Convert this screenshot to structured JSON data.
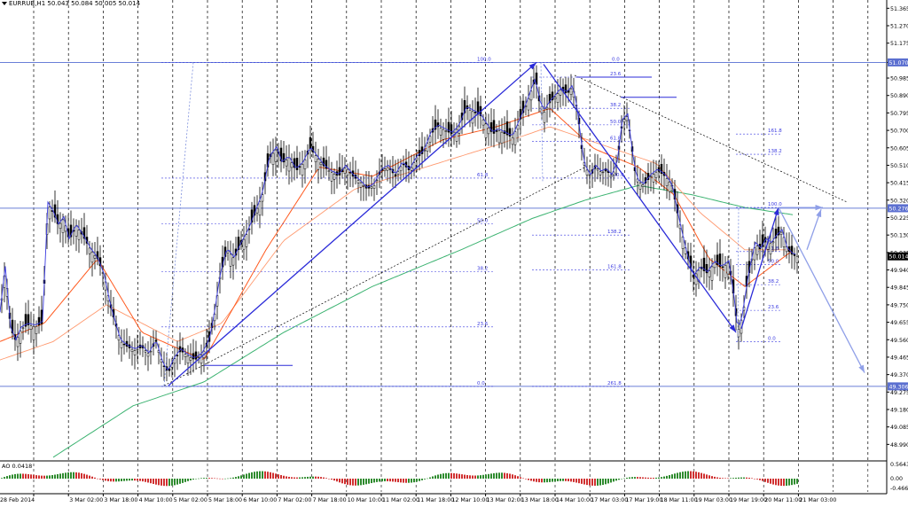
{
  "header": {
    "symbol": "EURRUB,H1",
    "quote": "50.043 50.084 50.005 50.014"
  },
  "colors": {
    "background": "#ffffff",
    "grid": "#000000",
    "candles": "#000000",
    "ma_fast": "#3a3ae0",
    "ma_mid": "#ff5a1f",
    "ma_slow": "#ff9a70",
    "ma_long": "#3cb371",
    "level_line": "#6a7fd8",
    "fib": "#3a3ae0",
    "arrow": "#2b2bd8",
    "arrow_future": "#8f9fe8",
    "ao_up": "#2e8b2e",
    "ao_down": "#d03030",
    "price_box": "#000000",
    "level_box": "#5b6fd0"
  },
  "ao": {
    "label": "AO 0.0418",
    "axis_ticks": [
      "0.5643",
      "0.00",
      "-0.4668"
    ]
  },
  "chart_data": {
    "type": "candlestick",
    "title": "",
    "ylim": [
      48.9,
      51.41
    ],
    "y_ticks": [
      "51.365",
      "51.270",
      "51.175",
      "51.070",
      "50.985",
      "50.890",
      "50.795",
      "50.700",
      "50.605",
      "50.510",
      "50.415",
      "50.320",
      "50.225",
      "50.130",
      "50.035",
      "49.940",
      "49.845",
      "49.750",
      "49.655",
      "49.560",
      "49.465",
      "49.370",
      "49.275",
      "49.180",
      "49.085",
      "48.990"
    ],
    "x_ticks": [
      "28 Feb 2014",
      "3 Mar 02:00",
      "3 Mar 18:00",
      "4 Mar 10:00",
      "5 Mar 02:00",
      "5 Mar 18:00",
      "6 Mar 10:00",
      "7 Mar 02:00",
      "7 Mar 18:00",
      "10 Mar 10:00",
      "11 Mar 02:00",
      "11 Mar 18:00",
      "12 Mar 10:00",
      "13 Mar 02:00",
      "13 Mar 18:00",
      "14 Mar 10:00",
      "17 Mar 03:00",
      "17 Mar 19:00",
      "18 Mar 11:00",
      "19 Mar 03:00",
      "19 Mar 19:00",
      "20 Mar 11:00",
      "21 Mar 03:00"
    ],
    "current_price": "50.014",
    "horizontal_levels": [
      {
        "label": "51.070",
        "value": 51.07
      },
      {
        "label": "50.276",
        "value": 50.276
      },
      {
        "label": "49.306",
        "value": 49.306
      }
    ],
    "fib_labels_left": [
      "100.0",
      "61.8",
      "50.0",
      "38.2",
      "23.6",
      "0.0"
    ],
    "fib_labels_mid": [
      "0.0",
      "23.6",
      "38.2",
      "50.0",
      "61.8",
      "100.0",
      "138.2",
      "161.8",
      "261.8"
    ],
    "fib_labels_right": [
      "161.8",
      "138.2",
      "100.0",
      "61.8",
      "50.0",
      "38.2",
      "23.6",
      "0.0"
    ],
    "close_path": [
      [
        0,
        49.7
      ],
      [
        6,
        49.95
      ],
      [
        12,
        49.62
      ],
      [
        18,
        49.55
      ],
      [
        24,
        49.62
      ],
      [
        32,
        49.64
      ],
      [
        40,
        49.63
      ],
      [
        48,
        49.65
      ],
      [
        54,
        50.3
      ],
      [
        60,
        50.25
      ],
      [
        66,
        50.18
      ],
      [
        72,
        50.22
      ],
      [
        78,
        50.1
      ],
      [
        86,
        50.18
      ],
      [
        94,
        50.12
      ],
      [
        102,
        50.05
      ],
      [
        110,
        50.0
      ],
      [
        118,
        49.9
      ],
      [
        124,
        49.75
      ],
      [
        130,
        49.65
      ],
      [
        136,
        49.55
      ],
      [
        144,
        49.52
      ],
      [
        152,
        49.5
      ],
      [
        160,
        49.52
      ],
      [
        168,
        49.48
      ],
      [
        176,
        49.55
      ],
      [
        184,
        49.42
      ],
      [
        190,
        49.38
      ],
      [
        196,
        49.45
      ],
      [
        204,
        49.5
      ],
      [
        212,
        49.47
      ],
      [
        220,
        49.45
      ],
      [
        228,
        49.48
      ],
      [
        236,
        49.55
      ],
      [
        242,
        49.7
      ],
      [
        248,
        49.9
      ],
      [
        256,
        50.05
      ],
      [
        264,
        50.0
      ],
      [
        272,
        50.08
      ],
      [
        280,
        50.15
      ],
      [
        288,
        50.25
      ],
      [
        296,
        50.35
      ],
      [
        304,
        50.55
      ],
      [
        312,
        50.6
      ],
      [
        318,
        50.52
      ],
      [
        326,
        50.55
      ],
      [
        334,
        50.48
      ],
      [
        342,
        50.52
      ],
      [
        350,
        50.6
      ],
      [
        358,
        50.55
      ],
      [
        366,
        50.5
      ],
      [
        374,
        50.47
      ],
      [
        382,
        50.45
      ],
      [
        390,
        50.5
      ],
      [
        398,
        50.45
      ],
      [
        406,
        50.42
      ],
      [
        414,
        50.38
      ],
      [
        422,
        50.4
      ],
      [
        430,
        50.48
      ],
      [
        438,
        50.5
      ],
      [
        446,
        50.45
      ],
      [
        454,
        50.52
      ],
      [
        462,
        50.48
      ],
      [
        470,
        50.55
      ],
      [
        478,
        50.58
      ],
      [
        486,
        50.68
      ],
      [
        494,
        50.72
      ],
      [
        502,
        50.7
      ],
      [
        510,
        50.68
      ],
      [
        518,
        50.72
      ],
      [
        526,
        50.82
      ],
      [
        534,
        50.8
      ],
      [
        542,
        50.78
      ],
      [
        550,
        50.72
      ],
      [
        556,
        50.68
      ],
      [
        562,
        50.7
      ],
      [
        570,
        50.68
      ],
      [
        578,
        50.66
      ],
      [
        586,
        50.75
      ],
      [
        592,
        50.82
      ],
      [
        598,
        50.9
      ],
      [
        604,
        50.98
      ],
      [
        608,
        50.86
      ],
      [
        614,
        50.8
      ],
      [
        620,
        50.85
      ],
      [
        626,
        50.88
      ],
      [
        632,
        50.92
      ],
      [
        640,
        50.9
      ],
      [
        646,
        50.94
      ],
      [
        652,
        50.78
      ],
      [
        656,
        50.6
      ],
      [
        660,
        50.5
      ],
      [
        666,
        50.45
      ],
      [
        672,
        50.5
      ],
      [
        678,
        50.47
      ],
      [
        684,
        50.48
      ],
      [
        690,
        50.45
      ],
      [
        696,
        50.52
      ],
      [
        702,
        50.75
      ],
      [
        708,
        50.78
      ],
      [
        712,
        50.62
      ],
      [
        716,
        50.48
      ],
      [
        720,
        50.42
      ],
      [
        726,
        50.4
      ],
      [
        734,
        50.45
      ],
      [
        742,
        50.48
      ],
      [
        750,
        50.45
      ],
      [
        758,
        50.4
      ],
      [
        764,
        50.25
      ],
      [
        770,
        50.12
      ],
      [
        776,
        50.0
      ],
      [
        782,
        49.9
      ],
      [
        790,
        49.95
      ],
      [
        798,
        49.92
      ],
      [
        806,
        49.98
      ],
      [
        814,
        49.95
      ],
      [
        822,
        49.98
      ],
      [
        828,
        49.78
      ],
      [
        832,
        49.6
      ],
      [
        838,
        49.7
      ],
      [
        842,
        49.85
      ],
      [
        848,
        50.0
      ],
      [
        852,
        50.08
      ],
      [
        858,
        50.05
      ],
      [
        864,
        50.1
      ],
      [
        870,
        50.08
      ],
      [
        876,
        50.12
      ],
      [
        882,
        50.15
      ],
      [
        888,
        50.05
      ],
      [
        894,
        50.02
      ],
      [
        899,
        50.014
      ]
    ],
    "ma_long_path": [
      [
        60,
        48.92
      ],
      [
        150,
        49.2
      ],
      [
        230,
        49.33
      ],
      [
        320,
        49.6
      ],
      [
        420,
        49.85
      ],
      [
        520,
        50.05
      ],
      [
        600,
        50.22
      ],
      [
        660,
        50.32
      ],
      [
        720,
        50.4
      ],
      [
        780,
        50.35
      ],
      [
        840,
        50.28
      ],
      [
        895,
        50.24
      ]
    ],
    "ma_slow_path": [
      [
        0,
        49.45
      ],
      [
        60,
        49.55
      ],
      [
        120,
        49.75
      ],
      [
        200,
        49.55
      ],
      [
        250,
        49.65
      ],
      [
        320,
        50.1
      ],
      [
        400,
        50.38
      ],
      [
        480,
        50.5
      ],
      [
        560,
        50.62
      ],
      [
        620,
        50.72
      ],
      [
        680,
        50.62
      ],
      [
        740,
        50.52
      ],
      [
        790,
        50.25
      ],
      [
        840,
        50.05
      ],
      [
        895,
        50.05
      ]
    ],
    "ma_mid_path": [
      [
        0,
        49.55
      ],
      [
        50,
        49.65
      ],
      [
        110,
        50.0
      ],
      [
        160,
        49.6
      ],
      [
        230,
        49.45
      ],
      [
        300,
        50.05
      ],
      [
        360,
        50.5
      ],
      [
        420,
        50.45
      ],
      [
        500,
        50.65
      ],
      [
        560,
        50.72
      ],
      [
        620,
        50.82
      ],
      [
        670,
        50.6
      ],
      [
        720,
        50.5
      ],
      [
        760,
        50.35
      ],
      [
        800,
        50.0
      ],
      [
        840,
        49.85
      ],
      [
        895,
        50.05
      ]
    ]
  }
}
